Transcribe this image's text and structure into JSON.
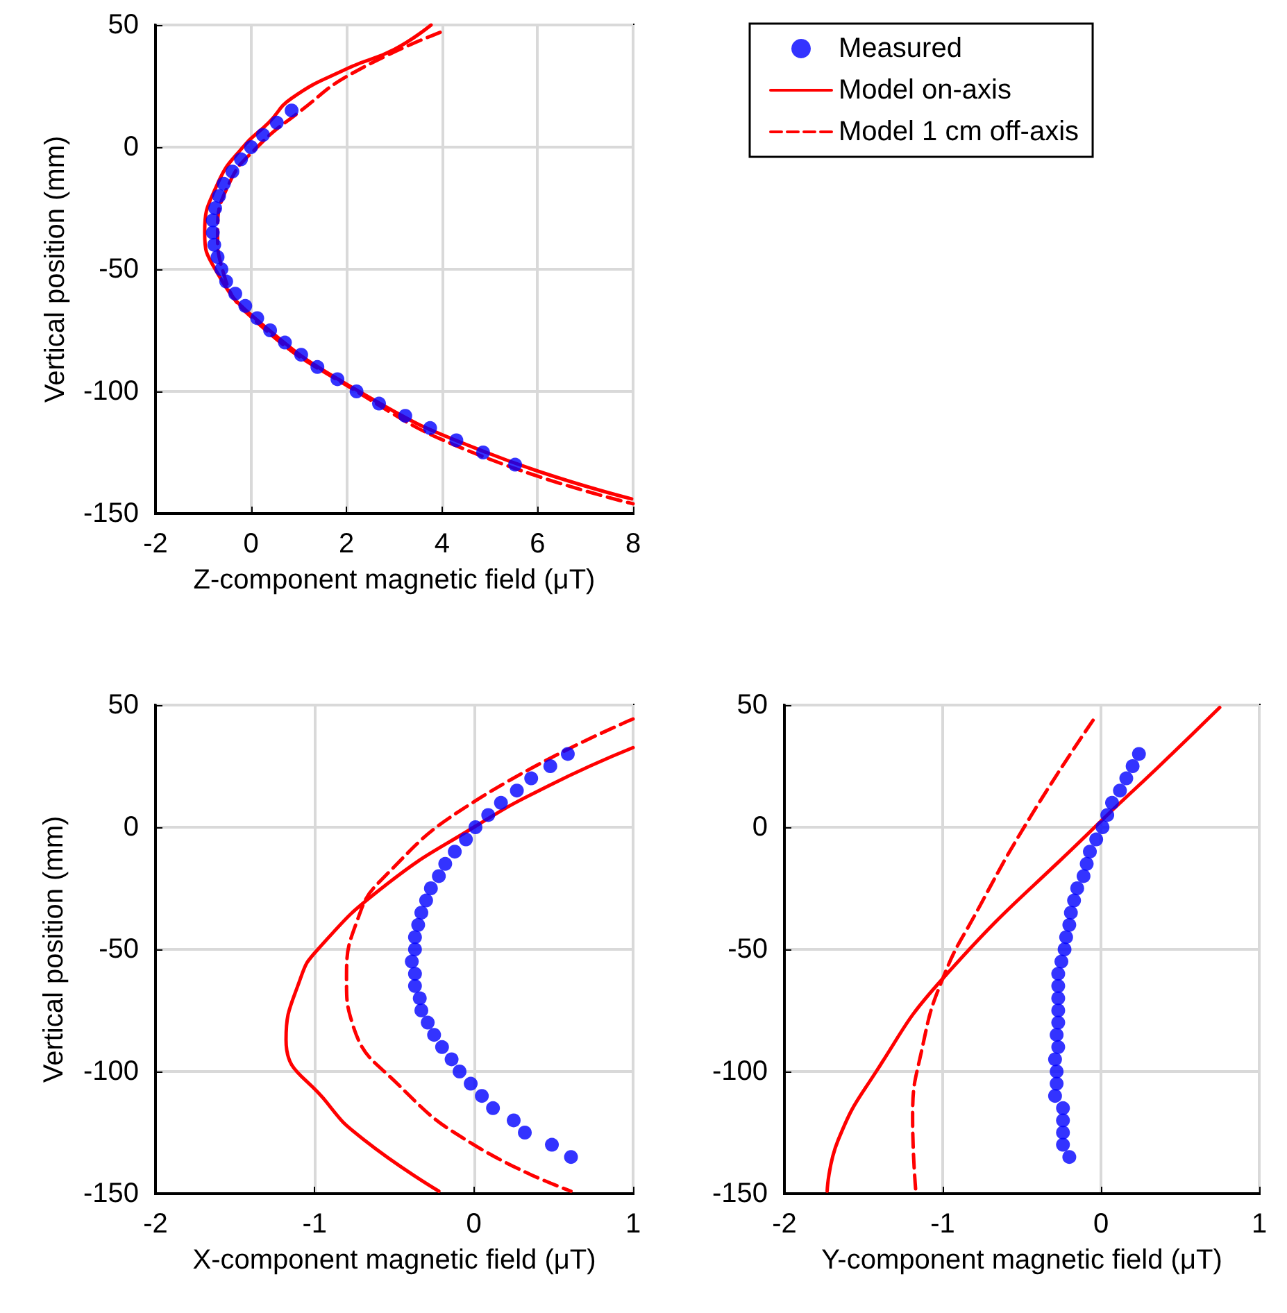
{
  "chart_data": [
    {
      "type": "line",
      "xlabel": "Z-component magnetic field (μT)",
      "ylabel": "Vertical position (mm)",
      "xlim": [
        -2,
        8
      ],
      "ylim": [
        -150,
        50
      ],
      "xticks": [
        -2,
        0,
        2,
        4,
        6,
        8
      ],
      "yticks": [
        -150,
        -100,
        -50,
        0,
        50
      ],
      "grid": true,
      "legend": "right",
      "series": [
        {
          "name": "Measured",
          "type": "scatter",
          "marker": "circle",
          "color": "#0000ff",
          "x": [
            0.85,
            0.54,
            0.25,
            0.0,
            -0.21,
            -0.39,
            -0.57,
            -0.67,
            -0.75,
            -0.8,
            -0.8,
            -0.77,
            -0.7,
            -0.62,
            -0.52,
            -0.33,
            -0.12,
            0.13,
            0.4,
            0.71,
            1.05,
            1.39,
            1.81,
            2.21,
            2.68,
            3.23,
            3.75,
            4.3,
            4.86,
            5.53
          ],
          "values": [
            15,
            10,
            5,
            0,
            -5,
            -10,
            -15,
            -20,
            -25,
            -30,
            -35,
            -40,
            -45,
            -50,
            -55,
            -60,
            -65,
            -70,
            -75,
            -80,
            -85,
            -90,
            -95,
            -100,
            -105,
            -110,
            -115,
            -120,
            -125,
            -130
          ]
        },
        {
          "name": "Model on-axis",
          "line_style": "solid",
          "color": "#ff0000",
          "x": [
            3.77,
            3.0,
            2.0,
            0.85,
            0.37,
            -0.17,
            -0.7,
            -0.97,
            -0.75,
            0.08,
            2.26,
            4.93,
            7.97
          ],
          "values": [
            50,
            40,
            32,
            20,
            10,
            0,
            -15,
            -35,
            -50,
            -70,
            -100,
            -125,
            -144
          ]
        },
        {
          "name": "Model 1 cm off-axis",
          "line_style": "dashed",
          "color": "#ff0000",
          "x": [
            3.96,
            2.1,
            1.05,
            0.13,
            -0.46,
            -0.7,
            -0.6,
            0.03,
            2.21,
            4.64,
            8.0
          ],
          "values": [
            47,
            30,
            15,
            0,
            -15,
            -35,
            -50,
            -70,
            -100,
            -125,
            -146
          ]
        }
      ]
    },
    {
      "type": "line",
      "xlabel": "X-component magnetic field (μT)",
      "ylabel": "Vertical position (mm)",
      "xlim": [
        -2,
        1
      ],
      "ylim": [
        -150,
        50
      ],
      "xticks": [
        -2,
        -1,
        0,
        1
      ],
      "yticks": [
        -150,
        -100,
        -50,
        0,
        50
      ],
      "grid": true,
      "series": [
        {
          "type": "scatter",
          "marker": "circle",
          "color": "#0000ff",
          "x": [
            0.59,
            0.48,
            0.36,
            0.27,
            0.17,
            0.09,
            0.01,
            -0.05,
            -0.12,
            -0.18,
            -0.22,
            -0.27,
            -0.3,
            -0.33,
            -0.35,
            -0.37,
            -0.37,
            -0.39,
            -0.37,
            -0.37,
            -0.34,
            -0.33,
            -0.29,
            -0.25,
            -0.2,
            -0.14,
            -0.09,
            -0.02,
            0.05,
            0.12,
            0.25,
            0.32,
            0.49,
            0.61
          ],
          "values": [
            30,
            25,
            20,
            15,
            10,
            5,
            0,
            -5,
            -10,
            -15,
            -20,
            -25,
            -30,
            -35,
            -40,
            -45,
            -50,
            -55,
            -60,
            -65,
            -70,
            -75,
            -80,
            -85,
            -90,
            -95,
            -100,
            -105,
            -110,
            -115,
            -120,
            -125,
            -130,
            -135
          ]
        },
        {
          "line_style": "solid",
          "color": "#ff0000",
          "x": [
            1.0,
            0.47,
            0.0,
            -0.57,
            -0.98,
            -1.09,
            -1.18,
            -0.92,
            -0.69,
            -0.22
          ],
          "values": [
            32.6,
            17,
            0,
            -24.5,
            -50,
            -62,
            -87,
            -113,
            -128,
            -149
          ]
        },
        {
          "line_style": "dashed",
          "color": "#ff0000",
          "x": [
            1.0,
            0.0,
            -0.57,
            -0.73,
            -0.8,
            -0.76,
            -0.47,
            0.0,
            0.61
          ],
          "values": [
            44.3,
            10.4,
            -20.8,
            -37.7,
            -62,
            -81,
            -105.7,
            -130,
            -149
          ]
        }
      ]
    },
    {
      "type": "line",
      "xlabel": "Y-component magnetic field (μT)",
      "xlim": [
        -2,
        1
      ],
      "ylim": [
        -150,
        50
      ],
      "xticks": [
        -2,
        -1,
        0,
        1
      ],
      "yticks": [
        -150,
        -100,
        -50,
        0,
        50
      ],
      "grid": true,
      "series": [
        {
          "type": "scatter",
          "marker": "circle",
          "color": "#0000ff",
          "x": [
            0.24,
            0.2,
            0.16,
            0.12,
            0.07,
            0.04,
            0.01,
            -0.03,
            -0.07,
            -0.09,
            -0.11,
            -0.15,
            -0.17,
            -0.19,
            -0.2,
            -0.22,
            -0.23,
            -0.25,
            -0.27,
            -0.27,
            -0.27,
            -0.27,
            -0.27,
            -0.28,
            -0.27,
            -0.29,
            -0.28,
            -0.28,
            -0.29,
            -0.24,
            -0.24,
            -0.24,
            -0.24,
            -0.2
          ],
          "values": [
            30,
            25,
            20,
            15,
            10,
            5,
            0,
            -5,
            -10,
            -15,
            -20,
            -25,
            -30,
            -35,
            -40,
            -45,
            -50,
            -55,
            -60,
            -65,
            -70,
            -75,
            -80,
            -85,
            -90,
            -95,
            -100,
            -105,
            -110,
            -115,
            -120,
            -125,
            -130,
            -135
          ]
        },
        {
          "line_style": "solid",
          "color": "#ff0000",
          "x": [
            0.75,
            0.36,
            -0.04,
            -1.0,
            -1.42,
            -1.66,
            -1.73
          ],
          "values": [
            49,
            24.5,
            0,
            -62,
            -100,
            -128,
            -149
          ]
        },
        {
          "line_style": "dashed",
          "color": "#ff0000",
          "x": [
            -0.05,
            -0.45,
            -0.78,
            -1.0,
            -1.13,
            -1.19,
            -1.17
          ],
          "values": [
            43.8,
            3.8,
            -34,
            -62,
            -90.6,
            -119,
            -149
          ]
        }
      ]
    }
  ]
}
